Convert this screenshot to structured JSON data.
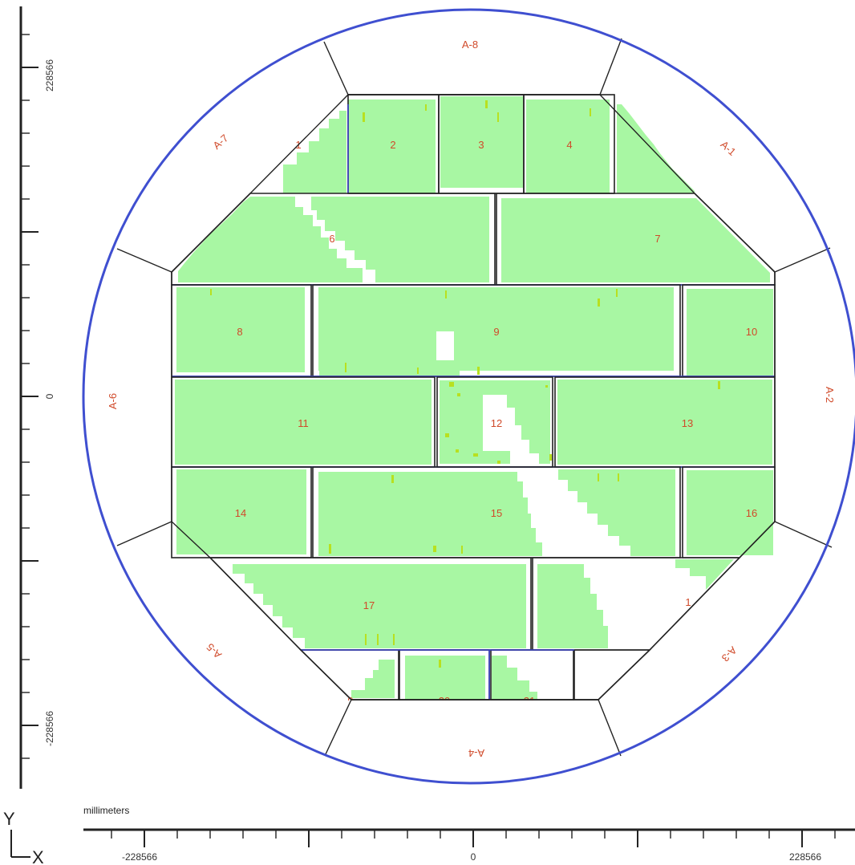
{
  "colors": {
    "wafer_outline": "#3f4fd0",
    "fill": "#a8f7a3",
    "fill_dark": "#86e07e",
    "defect": "#b8e020",
    "cell_border": "#222222",
    "cell_border_blue": "#3a42c8",
    "label": "#d04a2a"
  },
  "axes": {
    "y_axis_label": "Y",
    "x_axis_label": "X",
    "units": "millimeters",
    "y_ticks": [
      "228566",
      "0",
      "-228566"
    ],
    "x_ticks": [
      "-228566",
      "0",
      "228566"
    ]
  },
  "outer_segments": [
    "A-8",
    "A-1",
    "A-2",
    "A-3",
    "A-4",
    "A-5",
    "A-6",
    "A-7"
  ],
  "cells": [
    "2",
    "3",
    "4",
    "6",
    "7",
    "8",
    "9",
    "10",
    "11",
    "12",
    "13",
    "14",
    "15",
    "16",
    "17"
  ],
  "partial_labels": [
    "1",
    "1",
    "9",
    "20",
    "21"
  ]
}
